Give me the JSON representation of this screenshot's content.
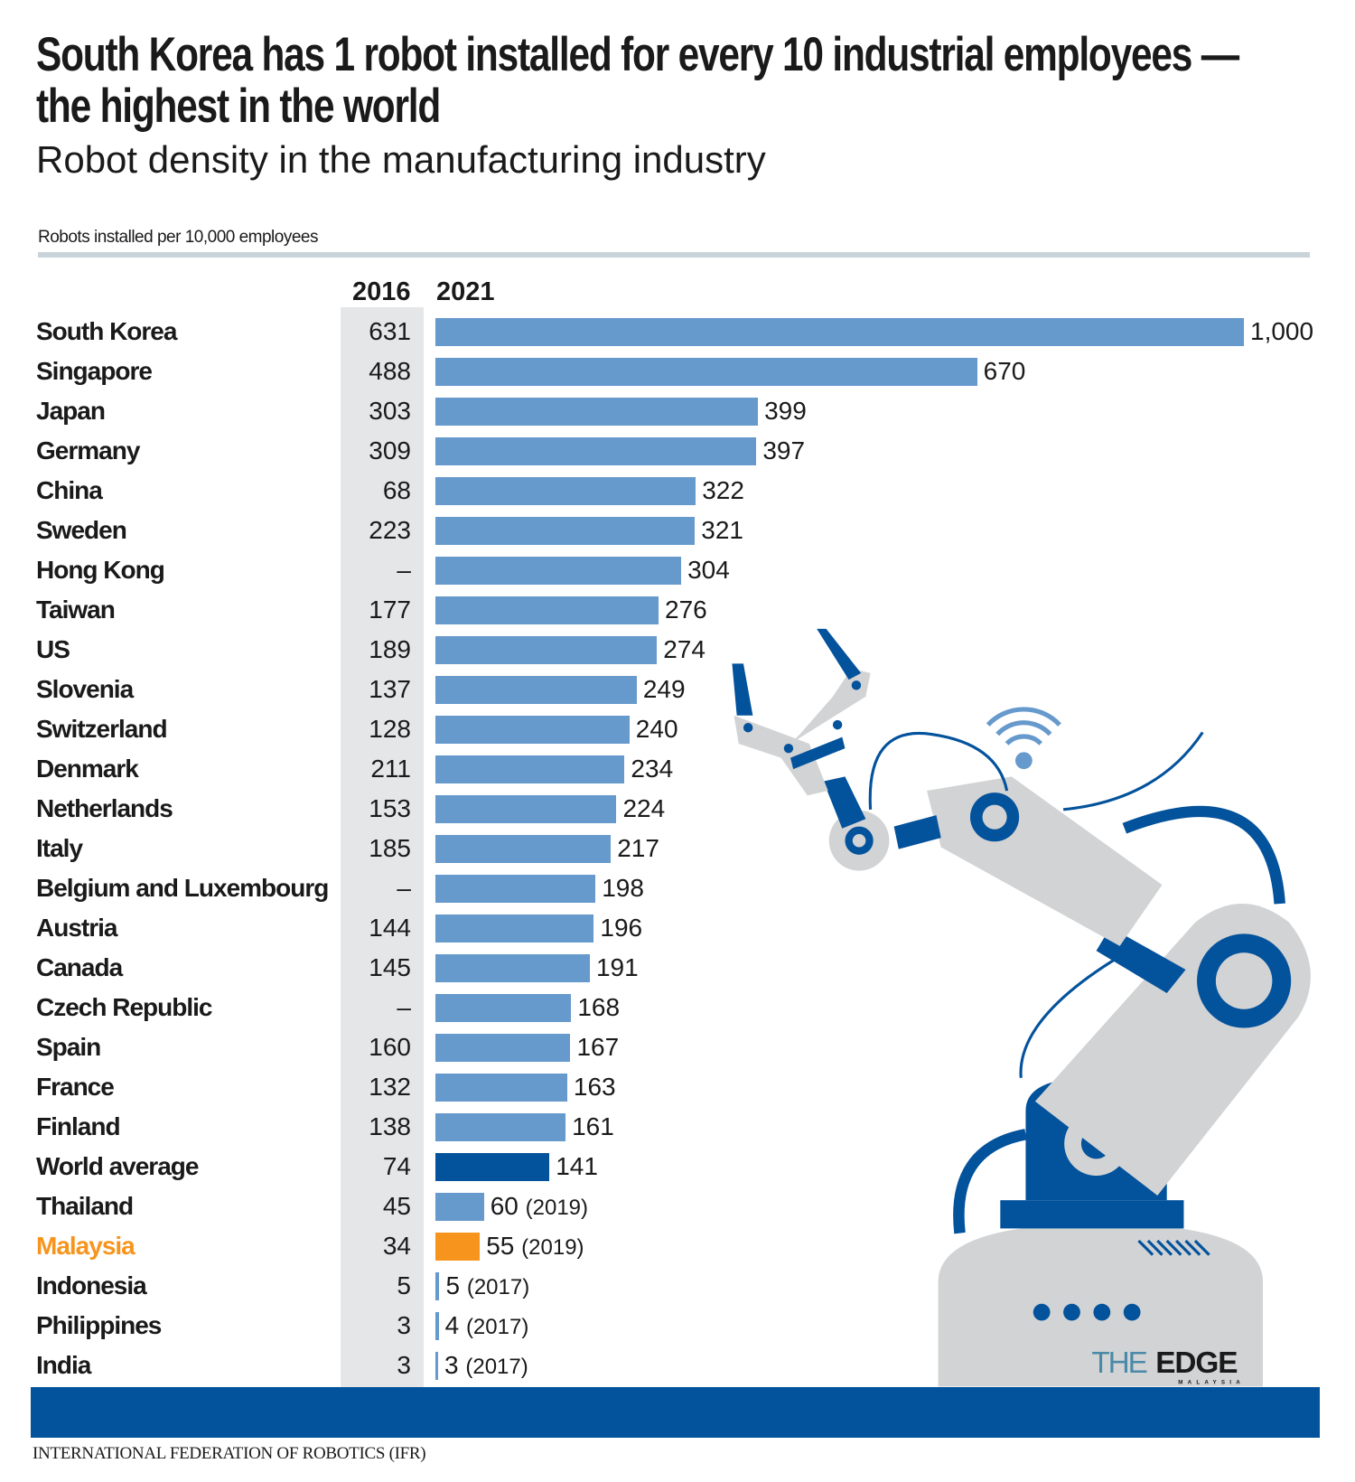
{
  "header": {
    "title": "South Korea has 1 robot installed for every 10 industrial employees — the highest in the world",
    "subtitle": "Robot density in the manufacturing industry",
    "unit_label": "Robots installed per 10,000 employees"
  },
  "colors": {
    "bar": "#6699cc",
    "world_average": "#03529c",
    "malaysia": "#f7941d",
    "band": "#e5e6e8",
    "footer": "#03529c",
    "robot_gray": "#d1d3d4",
    "robot_blue": "#03529c"
  },
  "chart_data": {
    "type": "bar",
    "orientation": "horizontal",
    "columns": [
      "2016",
      "2021"
    ],
    "xlim": [
      0,
      1000
    ],
    "grid": false,
    "categories": [
      "South Korea",
      "Singapore",
      "Japan",
      "Germany",
      "China",
      "Sweden",
      "Hong Kong",
      "Taiwan",
      "US",
      "Slovenia",
      "Switzerland",
      "Denmark",
      "Netherlands",
      "Italy",
      "Belgium and Luxembourg",
      "Austria",
      "Canada",
      "Czech Republic",
      "Spain",
      "France",
      "Finland",
      "World average",
      "Thailand",
      "Malaysia",
      "Indonesia",
      "Philippines",
      "India"
    ],
    "values_2016": [
      "631",
      "488",
      "303",
      "309",
      "68",
      "223",
      "–",
      "177",
      "189",
      "137",
      "128",
      "211",
      "153",
      "185",
      "–",
      "144",
      "145",
      "–",
      "160",
      "132",
      "138",
      "74",
      "45",
      "34",
      "5",
      "3",
      "3"
    ],
    "values_2021": [
      1000,
      670,
      399,
      397,
      322,
      321,
      304,
      276,
      274,
      249,
      240,
      234,
      224,
      217,
      198,
      196,
      191,
      168,
      167,
      163,
      161,
      141,
      60,
      55,
      5,
      4,
      3
    ],
    "labels_2021": [
      "1,000",
      "670",
      "399",
      "397",
      "322",
      "321",
      "304",
      "276",
      "274",
      "249",
      "240",
      "234",
      "224",
      "217",
      "198",
      "196",
      "191",
      "168",
      "167",
      "163",
      "161",
      "141",
      "60",
      "55",
      "5",
      "4",
      "3"
    ],
    "year_notes": [
      "",
      "",
      "",
      "",
      "",
      "",
      "",
      "",
      "",
      "",
      "",
      "",
      "",
      "",
      "",
      "",
      "",
      "",
      "",
      "",
      "",
      "",
      "(2019)",
      "(2019)",
      "(2017)",
      "(2017)",
      "(2017)"
    ],
    "highlight": {
      "World average": "world_average",
      "Malaysia": "malaysia"
    }
  },
  "logo": {
    "text": "THE EDGE MALAYSIA"
  },
  "footer": {
    "source": "INTERNATIONAL FEDERATION OF ROBOTICS (IFR)"
  }
}
